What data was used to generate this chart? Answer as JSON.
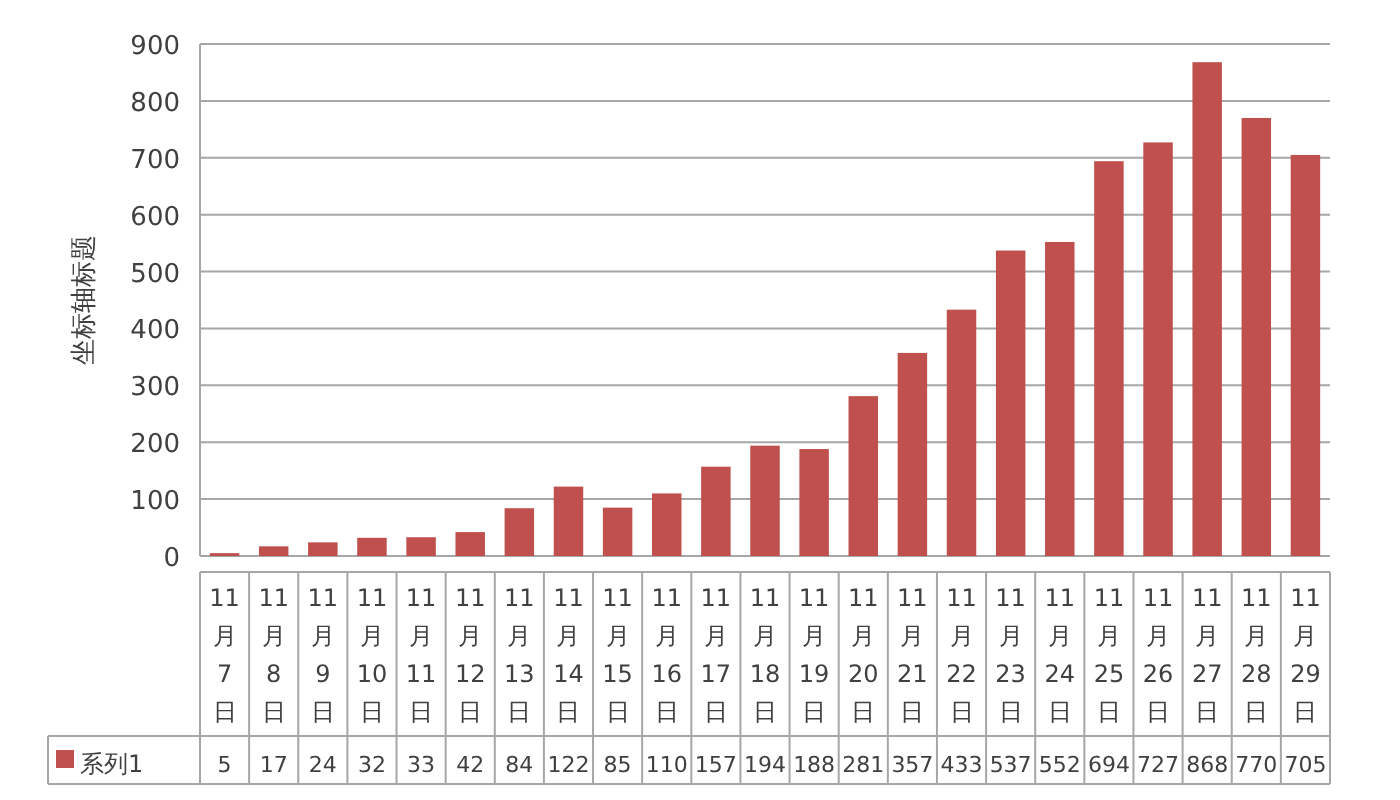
{
  "chart_data": {
    "type": "bar",
    "ylabel": "坐标轴标题",
    "categories": [
      "11月7日",
      "11月8日",
      "11月9日",
      "11月10日",
      "11月11日",
      "11月12日",
      "11月13日",
      "11月14日",
      "11月15日",
      "11月16日",
      "11月17日",
      "11月18日",
      "11月19日",
      "11月20日",
      "11月21日",
      "11月22日",
      "11月23日",
      "11月24日",
      "11月25日",
      "11月26日",
      "11月27日",
      "11月28日",
      "11月29日"
    ],
    "series": [
      {
        "name": "系列1",
        "color": "#c0504d",
        "values": [
          5,
          17,
          24,
          32,
          33,
          42,
          84,
          122,
          85,
          110,
          157,
          194,
          188,
          281,
          357,
          433,
          537,
          552,
          694,
          727,
          868,
          770,
          705
        ]
      }
    ],
    "ylim": [
      0,
      900
    ],
    "yticks": [
      0,
      100,
      200,
      300,
      400,
      500,
      600,
      700,
      800,
      900
    ],
    "grid": "y",
    "legend": "bottom",
    "data_labels": true
  }
}
